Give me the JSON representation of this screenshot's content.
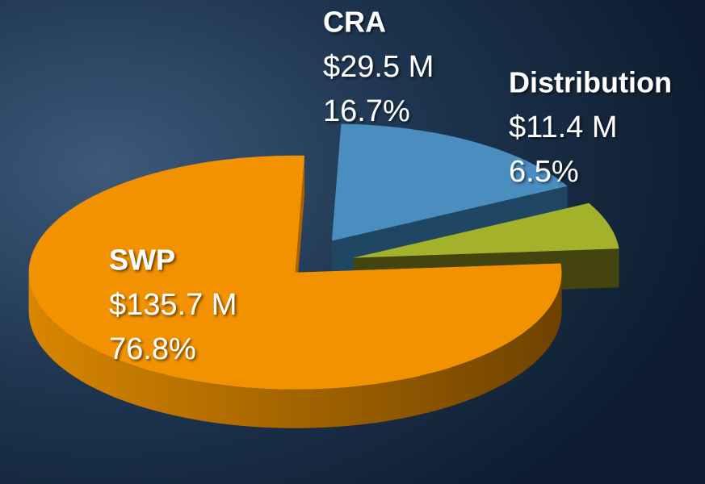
{
  "chart_data": {
    "type": "pie",
    "categories": [
      "CRA",
      "Distribution",
      "SWP"
    ],
    "values": [
      16.7,
      6.5,
      76.8
    ],
    "value_labels": [
      "16.7%",
      "6.5%",
      "76.8%"
    ],
    "amount_labels": [
      "$29.5 M",
      "$11.4 M",
      "$135.7 M"
    ],
    "colors": [
      "#4a8dbf",
      "#a3b22a",
      "#f39200"
    ],
    "side_colors": [
      "#1f4763",
      "#44440f",
      "#a86400"
    ],
    "exploded": true,
    "three_d": true
  }
}
